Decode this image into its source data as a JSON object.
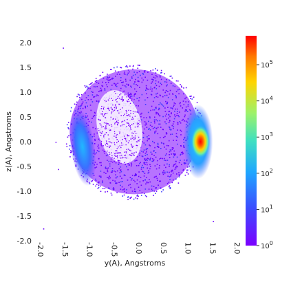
{
  "chart_data": {
    "type": "heatmap",
    "title": "",
    "xlabel": "y(A), Angstroms",
    "ylabel": "z(A), Angstroms",
    "xlim": [
      -2.0,
      2.0
    ],
    "ylim": [
      -2.0,
      2.0
    ],
    "x_ticks": [
      "-2.0",
      "-1.5",
      "-1.0",
      "-0.5",
      "0.0",
      "0.5",
      "1.0",
      "1.5",
      "2.0"
    ],
    "y_ticks": [
      "2.0",
      "1.5",
      "1.0",
      "0.5",
      "0.0",
      "-0.5",
      "-1.0",
      "-1.5",
      "-2.0"
    ],
    "grid": false,
    "colorbar": {
      "scale": "log",
      "range": [
        1,
        630957
      ],
      "colormap": "rainbow",
      "ticks": [
        {
          "base": "10",
          "exp": "0",
          "value": 1
        },
        {
          "base": "10",
          "exp": "1",
          "value": 10
        },
        {
          "base": "10",
          "exp": "2",
          "value": 100
        },
        {
          "base": "10",
          "exp": "3",
          "value": 1000
        },
        {
          "base": "10",
          "exp": "4",
          "value": 10000
        },
        {
          "base": "10",
          "exp": "5",
          "value": 100000
        }
      ]
    },
    "density_features": [
      {
        "region": "outer ring",
        "center": [
          0.0,
          0.2
        ],
        "extent": [
          1.35,
          1.3
        ],
        "level": 1
      },
      {
        "region": "right peak",
        "center": [
          1.35,
          0.0
        ],
        "extent": [
          0.12,
          0.22
        ],
        "level": 630000
      },
      {
        "region": "right arc",
        "center": [
          1.3,
          0.0
        ],
        "extent": [
          0.3,
          0.75
        ],
        "level": 1000
      },
      {
        "region": "left arc",
        "center": [
          -1.05,
          -0.1
        ],
        "extent": [
          0.25,
          0.8
        ],
        "level": 30
      },
      {
        "region": "central void",
        "center": [
          -0.3,
          0.3
        ],
        "extent": [
          0.45,
          0.75
        ],
        "level": 0
      }
    ],
    "colors": {
      "low": "#7b00ff",
      "mid_low": "#1e90ff",
      "mid": "#3fe0c0",
      "mid_high": "#ffd400",
      "high": "#ff0000"
    }
  }
}
